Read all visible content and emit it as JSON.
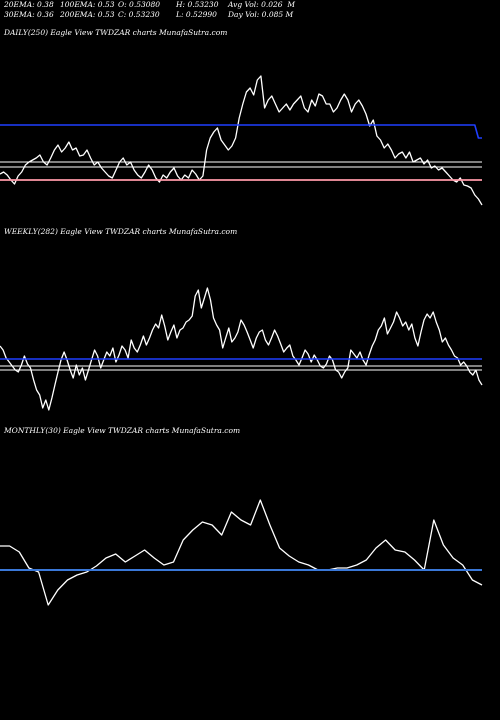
{
  "header": {
    "row1": [
      "20EMA: 0.38",
      "100EMA: 0.53",
      "O: 0.53080",
      "H: 0.53230",
      "Avg Vol: 0.026  M"
    ],
    "row2": [
      "30EMA: 0.36",
      "200EMA: 0.53",
      "C: 0.53230",
      "L: 0.52990",
      "Day Vol: 0.085 M"
    ]
  },
  "colors": {
    "background": "#000000",
    "price": "#ffffff",
    "ema_blue": "#1f3fff",
    "ema_pink": "#ff9aa8",
    "ema_white": "#ffffff",
    "monthly_blue": "#3a78d8"
  },
  "chart_data": [
    {
      "type": "line",
      "title": "DAILY(250) Eagle  View  TWDZAR charts MunafaSutra.com",
      "series": [
        {
          "values": [
            174,
            172,
            175,
            180,
            184,
            176,
            172,
            165,
            162,
            160,
            158,
            155,
            162,
            165,
            158,
            150,
            145,
            152,
            148,
            142,
            150,
            148,
            156,
            155,
            150,
            158,
            165,
            162,
            168,
            172,
            176,
            178,
            170,
            162,
            158,
            165,
            162,
            170,
            175,
            178,
            172,
            165,
            170,
            178,
            182,
            175,
            178,
            172,
            168,
            176,
            180,
            175,
            178,
            170,
            174,
            180,
            176,
            150,
            138,
            132,
            128,
            140,
            145,
            150,
            146,
            138,
            118,
            104,
            92,
            88,
            95,
            80,
            76,
            108,
            100,
            96,
            104,
            112,
            108,
            104,
            110,
            104,
            100,
            96,
            108,
            112,
            100,
            106,
            94,
            96,
            104,
            104,
            112,
            108,
            100,
            94,
            100,
            112,
            104,
            100,
            106,
            114,
            126,
            120,
            136,
            140,
            148,
            144,
            150,
            158,
            154,
            152,
            158,
            152,
            162,
            160,
            158,
            164,
            160,
            168,
            166,
            170,
            168,
            172,
            176,
            180,
            182,
            178,
            185,
            186,
            188,
            195,
            199,
            205
          ]
        },
        {
          "values": [
            125,
            125,
            125,
            125,
            125,
            125,
            125,
            125,
            125,
            125,
            125,
            125,
            125,
            125,
            125,
            125,
            125,
            125,
            125,
            125,
            125,
            125,
            125,
            125,
            125,
            125,
            125,
            125,
            125,
            125,
            125,
            125,
            125,
            125,
            125,
            125,
            125,
            125,
            125,
            125,
            125,
            125,
            125,
            125,
            125,
            125,
            125,
            125,
            125,
            125,
            125,
            125,
            125,
            125,
            125,
            125,
            125,
            125,
            125,
            125,
            125,
            125,
            125,
            125,
            125,
            125,
            125,
            125,
            125,
            125,
            125,
            125,
            125,
            125,
            125,
            125,
            125,
            125,
            125,
            125,
            125,
            125,
            125,
            125,
            125,
            125,
            125,
            125,
            125,
            125,
            125,
            125,
            125,
            125,
            125,
            125,
            125,
            125,
            125,
            125,
            125,
            125,
            125,
            125,
            125,
            125,
            125,
            125,
            125,
            125,
            125,
            125,
            125,
            125,
            125,
            125,
            125,
            125,
            125,
            125,
            125,
            125,
            125,
            125,
            125,
            125,
            125,
            125,
            125,
            125,
            125,
            125,
            138,
            138
          ]
        },
        {
          "values": [
            162,
            162
          ]
        },
        {
          "values": [
            167,
            167
          ]
        },
        {
          "values": [
            180,
            180
          ]
        }
      ],
      "ylim": [
        70,
        215
      ]
    },
    {
      "type": "line",
      "title": "WEEKLY(282) Eagle  View  TWDZAR charts MunafaSutra.com",
      "series": [
        {
          "values": [
            346,
            350,
            358,
            362,
            366,
            370,
            372,
            365,
            356,
            364,
            368,
            380,
            390,
            395,
            408,
            400,
            410,
            398,
            385,
            372,
            360,
            352,
            360,
            370,
            378,
            365,
            375,
            368,
            380,
            370,
            360,
            350,
            356,
            368,
            360,
            352,
            356,
            348,
            362,
            355,
            346,
            350,
            358,
            340,
            348,
            352,
            345,
            336,
            345,
            338,
            330,
            324,
            328,
            315,
            326,
            340,
            332,
            325,
            338,
            330,
            328,
            322,
            320,
            316,
            296,
            290,
            308,
            298,
            288,
            300,
            318,
            325,
            330,
            348,
            338,
            328,
            342,
            338,
            332,
            320,
            325,
            332,
            340,
            348,
            338,
            332,
            330,
            340,
            345,
            338,
            330,
            336,
            344,
            352,
            348,
            345,
            356,
            360,
            365,
            358,
            350,
            354,
            362,
            355,
            360,
            366,
            368,
            364,
            356,
            360,
            370,
            372,
            378,
            372,
            368,
            350,
            354,
            358,
            352,
            360,
            365,
            355,
            346,
            340,
            330,
            326,
            318,
            334,
            328,
            322,
            312,
            318,
            326,
            322,
            330,
            324,
            338,
            346,
            332,
            320,
            314,
            318,
            312,
            322,
            330,
            342,
            338,
            345,
            350,
            356,
            358,
            365,
            362,
            366,
            372,
            375,
            370,
            380,
            385
          ]
        },
        {
          "values": [
            359,
            359
          ]
        },
        {
          "values": [
            366,
            366
          ]
        },
        {
          "values": [
            370,
            370
          ]
        }
      ],
      "ylim": [
        280,
        420
      ]
    },
    {
      "type": "line",
      "title": "MONTHLY(30) Eagle  View  TWDZAR charts MunafaSutra.com",
      "series": [
        {
          "values": [
            546,
            546,
            552,
            568,
            572,
            605,
            590,
            580,
            575,
            572,
            566,
            558,
            554,
            562,
            556,
            550,
            558,
            565,
            562,
            540,
            530,
            522,
            525,
            535,
            512,
            520,
            525,
            500,
            525,
            548,
            556,
            562,
            565,
            570,
            570,
            568,
            568,
            565,
            560,
            548,
            540,
            550,
            552,
            560,
            570,
            520,
            545,
            558,
            565,
            580,
            585
          ]
        },
        {
          "values": [
            570,
            570
          ]
        }
      ],
      "ylim": [
        480,
        610
      ]
    }
  ]
}
